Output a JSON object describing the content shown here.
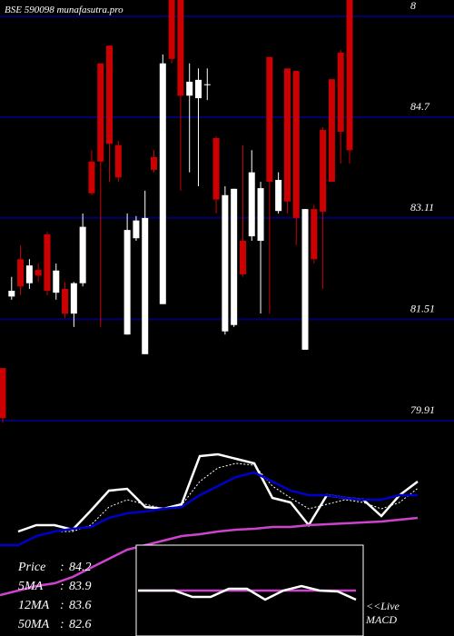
{
  "chart_data": [
    {
      "type": "candlestick",
      "title": "BSE 590098 munafasutra.pro",
      "open": [
        80.74,
        81.87,
        82.46,
        82.08,
        82.29,
        82.85,
        81.93,
        81.99,
        81.6,
        82.08,
        84.0,
        85.55,
        85.83,
        84.26,
        81.27,
        82.79,
        80.96,
        84.07,
        81.75,
        86.55,
        86.55,
        85.04,
        85.0,
        85.22,
        84.37,
        81.32,
        81.42,
        82.75,
        82.82,
        82.75,
        85.65,
        83.22,
        85.47,
        85.43,
        81.03,
        83.25,
        84.5,
        85.3,
        85.72,
        86.55
      ],
      "high": [
        80.74,
        82.18,
        82.68,
        82.46,
        82.39,
        82.89,
        82.39,
        82.1,
        82.1,
        83.18,
        84.18,
        85.55,
        85.83,
        84.33,
        83.18,
        83.14,
        83.54,
        84.18,
        85.69,
        86.55,
        86.55,
        85.55,
        85.47,
        85.47,
        84.4,
        83.61,
        83.57,
        84.26,
        84.18,
        83.68,
        85.65,
        83.83,
        85.47,
        85.43,
        83.25,
        83.32,
        84.54,
        85.3,
        85.76,
        86.55
      ],
      "low": [
        79.88,
        81.82,
        81.89,
        81.99,
        82.1,
        81.89,
        81.82,
        81.53,
        81.39,
        82.03,
        83.47,
        81.39,
        83.68,
        83.68,
        81.27,
        82.75,
        80.96,
        83.83,
        81.75,
        85.55,
        83.54,
        83.83,
        83.61,
        84.97,
        83.18,
        81.27,
        81.39,
        82.18,
        82.75,
        81.6,
        81.6,
        83.18,
        83.18,
        82.68,
        81.03,
        82.39,
        81.99,
        83.68,
        83.97,
        83.97
      ],
      "close": [
        79.95,
        81.96,
        82.03,
        82.36,
        82.2,
        81.96,
        82.28,
        81.6,
        82.08,
        82.97,
        83.5,
        84.0,
        84.28,
        83.75,
        82.92,
        83.07,
        83.11,
        83.87,
        85.55,
        85.62,
        85.04,
        85.26,
        85.29,
        85.22,
        83.4,
        83.47,
        83.57,
        82.22,
        83.83,
        83.58,
        83.68,
        83.71,
        83.37,
        83.11,
        83.25,
        82.46,
        83.21,
        83.68,
        84.47,
        84.18
      ],
      "up_color": "#ffffff",
      "down_color": "#cc0000",
      "ylim": [
        79.81,
        86.55
      ],
      "yticks": [
        {
          "value": 86.29,
          "label": "8"
        },
        84.7,
        83.11,
        81.51,
        79.91
      ],
      "grid": true,
      "grid_color": "#00006e"
    },
    {
      "type": "line",
      "ylim": [
        77.4,
        86.6
      ],
      "legend_separator": ":",
      "series": [
        {
          "name": "Price",
          "color": "#ffffff",
          "dashed": false,
          "values": [
            null,
            82.0,
            82.28,
            82.28,
            82.08,
            82.92,
            83.8,
            83.88,
            83.08,
            83.0,
            83.2,
            85.32,
            85.4,
            85.2,
            85.0,
            83.48,
            83.28,
            82.28,
            83.6,
            83.48,
            83.4,
            82.68,
            83.6,
            84.2
          ]
        },
        {
          "name": "5MA",
          "color": "#ffffff",
          "dashed": true,
          "values": [
            null,
            null,
            81.8,
            82.0,
            82.0,
            82.28,
            83.08,
            83.4,
            83.2,
            83.0,
            83.16,
            84.2,
            84.8,
            85.0,
            84.92,
            84.0,
            83.48,
            83.0,
            83.2,
            83.4,
            83.28,
            83.0,
            83.28,
            83.9
          ]
        },
        {
          "name": "12MA",
          "color": "#0000cc",
          "dashed": false,
          "values": [
            81.4,
            81.4,
            81.8,
            82.0,
            82.12,
            82.2,
            82.6,
            82.8,
            82.88,
            83.0,
            83.08,
            83.6,
            84.0,
            84.4,
            84.6,
            84.2,
            83.8,
            83.6,
            83.6,
            83.48,
            83.4,
            83.4,
            83.6,
            83.6
          ]
        },
        {
          "name": "50MA",
          "color": "#cc44cc",
          "dashed": false,
          "values": [
            79.2,
            79.4,
            79.6,
            79.72,
            80.0,
            80.4,
            80.8,
            81.2,
            81.4,
            81.6,
            81.8,
            81.88,
            82.0,
            82.08,
            82.12,
            82.2,
            82.2,
            82.28,
            82.32,
            82.36,
            82.4,
            82.44,
            82.52,
            82.6
          ]
        }
      ]
    },
    {
      "type": "line",
      "annotation": "<<Live",
      "title": "MACD",
      "ylim": [
        -1,
        1
      ],
      "series": [
        {
          "color": "#cc44cc",
          "dashed": false,
          "values": [
            0,
            0,
            0,
            0,
            0,
            0,
            0,
            0,
            0,
            0,
            0,
            0,
            0
          ]
        },
        {
          "color": "#ffffff",
          "dashed": false,
          "values": [
            0,
            0,
            0,
            -0.14,
            -0.14,
            0.04,
            0.04,
            -0.2,
            0,
            0.1,
            0,
            -0.02,
            -0.2
          ]
        }
      ]
    }
  ]
}
